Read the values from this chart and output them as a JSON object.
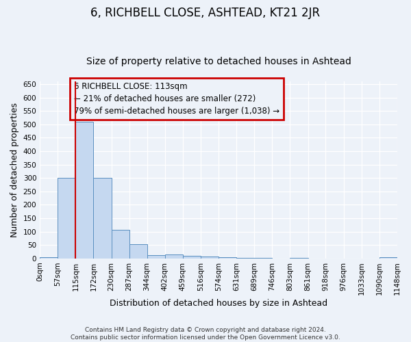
{
  "title": "6, RICHBELL CLOSE, ASHTEAD, KT21 2JR",
  "subtitle": "Size of property relative to detached houses in Ashtead",
  "xlabel": "Distribution of detached houses by size in Ashtead",
  "ylabel": "Number of detached properties",
  "bin_edges": [
    0,
    57,
    115,
    172,
    230,
    287,
    344,
    402,
    459,
    516,
    574,
    631,
    689,
    746,
    803,
    861,
    918,
    976,
    1033,
    1090,
    1148
  ],
  "bin_labels": [
    "0sqm",
    "57sqm",
    "115sqm",
    "172sqm",
    "230sqm",
    "287sqm",
    "344sqm",
    "402sqm",
    "459sqm",
    "516sqm",
    "574sqm",
    "631sqm",
    "689sqm",
    "746sqm",
    "803sqm",
    "861sqm",
    "918sqm",
    "976sqm",
    "1033sqm",
    "1090sqm",
    "1148sqm"
  ],
  "bar_heights": [
    5,
    300,
    510,
    300,
    107,
    53,
    13,
    14,
    10,
    8,
    5,
    1,
    1,
    0,
    1,
    0,
    0,
    0,
    0,
    5
  ],
  "bar_color": "#c5d8f0",
  "bar_edge_color": "#5a8fc0",
  "property_line_x": 115,
  "property_line_color": "#cc0000",
  "ylim": [
    0,
    660
  ],
  "yticks": [
    0,
    50,
    100,
    150,
    200,
    250,
    300,
    350,
    400,
    450,
    500,
    550,
    600,
    650
  ],
  "annotation_text": "6 RICHBELL CLOSE: 113sqm\n← 21% of detached houses are smaller (272)\n79% of semi-detached houses are larger (1,038) →",
  "annotation_box_edgecolor": "#cc0000",
  "background_color": "#edf2f9",
  "grid_color": "#ffffff",
  "footer_line1": "Contains HM Land Registry data © Crown copyright and database right 2024.",
  "footer_line2": "Contains public sector information licensed under the Open Government Licence v3.0.",
  "title_fontsize": 12,
  "subtitle_fontsize": 10,
  "annotation_fontsize": 8.5,
  "axis_label_fontsize": 9,
  "tick_fontsize": 7.5,
  "footer_fontsize": 6.5
}
